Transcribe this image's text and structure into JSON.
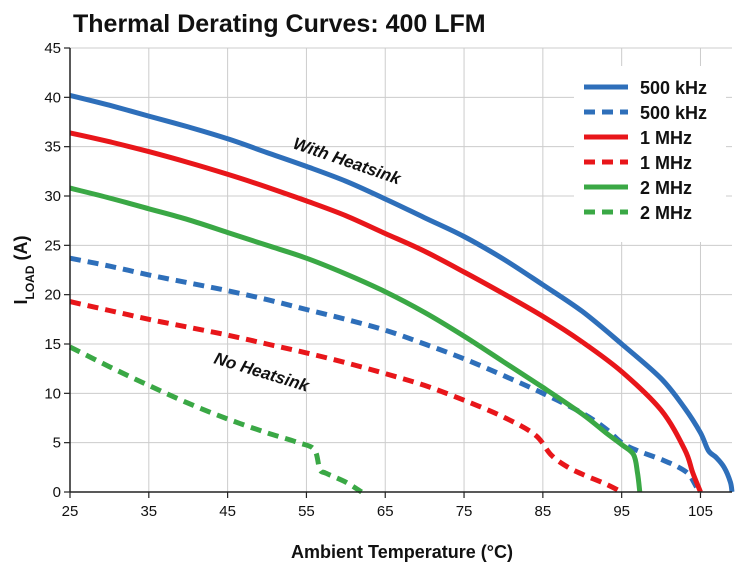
{
  "chart_data": {
    "type": "line",
    "title": "Thermal Derating Curves: 400 LFM",
    "xlabel": "Ambient Temperature (°C)",
    "ylabel": "I",
    "ylabel_sub": "LOAD",
    "ylabel_unit": " (A)",
    "xlim": [
      25,
      109
    ],
    "ylim": [
      0,
      45
    ],
    "xticks": [
      "25",
      "35",
      "45",
      "55",
      "65",
      "75",
      "85",
      "95",
      "105"
    ],
    "yticks": [
      "0",
      "5",
      "10",
      "15",
      "20",
      "25",
      "30",
      "35",
      "40",
      "45"
    ],
    "grid": true,
    "legend_position": "top-right",
    "annotations": [
      "With Heatsink",
      "No Heatsink"
    ],
    "series": [
      {
        "name": "500 kHz",
        "color": "#2e6fba",
        "style": "solid",
        "points": [
          [
            25,
            40.2
          ],
          [
            30,
            39.2
          ],
          [
            35,
            38.1
          ],
          [
            40,
            37.0
          ],
          [
            45,
            35.8
          ],
          [
            50,
            34.4
          ],
          [
            55,
            33.0
          ],
          [
            60,
            31.5
          ],
          [
            65,
            29.7
          ],
          [
            70,
            27.8
          ],
          [
            75,
            25.9
          ],
          [
            80,
            23.6
          ],
          [
            85,
            21.0
          ],
          [
            90,
            18.3
          ],
          [
            95,
            15.0
          ],
          [
            100,
            11.5
          ],
          [
            103,
            8.5
          ],
          [
            105,
            6.0
          ],
          [
            106,
            4.2
          ],
          [
            107,
            3.5
          ],
          [
            108,
            2.5
          ],
          [
            108.8,
            1.0
          ],
          [
            109,
            0
          ]
        ]
      },
      {
        "name": "500 kHz",
        "color": "#2e6fba",
        "style": "dashed",
        "points": [
          [
            25,
            23.7
          ],
          [
            30,
            22.9
          ],
          [
            35,
            22.0
          ],
          [
            40,
            21.2
          ],
          [
            45,
            20.4
          ],
          [
            50,
            19.5
          ],
          [
            55,
            18.5
          ],
          [
            60,
            17.5
          ],
          [
            65,
            16.4
          ],
          [
            70,
            15.0
          ],
          [
            75,
            13.5
          ],
          [
            80,
            11.8
          ],
          [
            85,
            10.0
          ],
          [
            90,
            8.0
          ],
          [
            93,
            6.4
          ],
          [
            95,
            5.0
          ],
          [
            97,
            4.2
          ],
          [
            100,
            3.3
          ],
          [
            102,
            2.6
          ],
          [
            103.5,
            1.8
          ],
          [
            104.5,
            0.5
          ]
        ]
      },
      {
        "name": "1 MHz",
        "color": "#e8161a",
        "style": "solid",
        "points": [
          [
            25,
            36.4
          ],
          [
            30,
            35.5
          ],
          [
            35,
            34.5
          ],
          [
            40,
            33.4
          ],
          [
            45,
            32.2
          ],
          [
            50,
            30.9
          ],
          [
            55,
            29.5
          ],
          [
            60,
            28.0
          ],
          [
            65,
            26.2
          ],
          [
            70,
            24.4
          ],
          [
            75,
            22.3
          ],
          [
            80,
            20.1
          ],
          [
            85,
            17.8
          ],
          [
            90,
            15.2
          ],
          [
            95,
            12.2
          ],
          [
            100,
            8.3
          ],
          [
            103,
            4.3
          ],
          [
            104,
            2.0
          ],
          [
            105,
            0
          ]
        ]
      },
      {
        "name": "1 MHz",
        "color": "#e8161a",
        "style": "dashed",
        "points": [
          [
            25,
            19.3
          ],
          [
            30,
            18.4
          ],
          [
            35,
            17.5
          ],
          [
            40,
            16.7
          ],
          [
            45,
            15.9
          ],
          [
            50,
            15.0
          ],
          [
            55,
            14.1
          ],
          [
            60,
            13.1
          ],
          [
            65,
            12.0
          ],
          [
            70,
            10.8
          ],
          [
            75,
            9.3
          ],
          [
            80,
            7.6
          ],
          [
            84,
            5.8
          ],
          [
            86,
            3.8
          ],
          [
            88,
            2.6
          ],
          [
            90,
            1.8
          ],
          [
            93,
            0.8
          ],
          [
            95,
            0
          ]
        ]
      },
      {
        "name": "2 MHz",
        "color": "#3aa845",
        "style": "solid",
        "points": [
          [
            25,
            30.8
          ],
          [
            30,
            29.8
          ],
          [
            35,
            28.7
          ],
          [
            40,
            27.6
          ],
          [
            45,
            26.3
          ],
          [
            50,
            25.0
          ],
          [
            55,
            23.7
          ],
          [
            60,
            22.1
          ],
          [
            65,
            20.3
          ],
          [
            70,
            18.2
          ],
          [
            75,
            15.8
          ],
          [
            80,
            13.2
          ],
          [
            85,
            10.6
          ],
          [
            90,
            7.9
          ],
          [
            93,
            6.0
          ],
          [
            95,
            4.8
          ],
          [
            96.5,
            3.8
          ],
          [
            97,
            2.0
          ],
          [
            97.3,
            0
          ]
        ]
      },
      {
        "name": "2 MHz",
        "color": "#3aa845",
        "style": "dashed",
        "points": [
          [
            25,
            14.7
          ],
          [
            30,
            12.7
          ],
          [
            35,
            10.8
          ],
          [
            40,
            9.0
          ],
          [
            45,
            7.4
          ],
          [
            50,
            6.0
          ],
          [
            54,
            5.0
          ],
          [
            56,
            4.3
          ],
          [
            56.7,
            2.3
          ],
          [
            57.5,
            1.9
          ],
          [
            60,
            1.0
          ],
          [
            62,
            0
          ]
        ]
      }
    ]
  }
}
